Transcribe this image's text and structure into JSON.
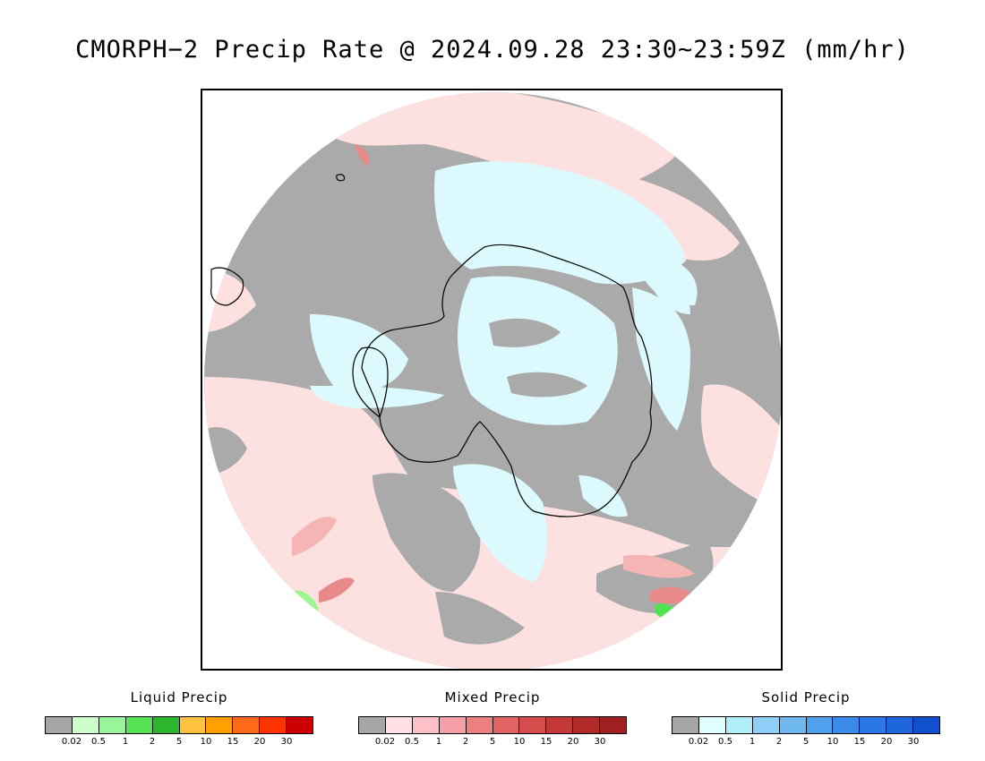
{
  "title": "CMORPH−2 Precip Rate @ 2024.09.28 23:30~23:59Z (mm/hr)",
  "map": {
    "projection": "south-polar-stereographic",
    "colors": {
      "no_data_gray": "#aaaaaa",
      "mixed_light": "#fde0e0",
      "mixed_medium": "#f5b5b5",
      "mixed_dark": "#e88a8a",
      "solid_light": "#dcfafe",
      "solid_medium": "#b0e8f4",
      "liquid_light": "#9cf58e",
      "liquid_medium": "#50e350",
      "coastline": "#000000"
    }
  },
  "legends": [
    {
      "name": "liquid",
      "title": "Liquid Precip",
      "colors": [
        "#a6a6a6",
        "#ccffcc",
        "#99f599",
        "#55e355",
        "#2db52d",
        "#ffc240",
        "#ffa000",
        "#ff6a1a",
        "#ff3300",
        "#cc0000"
      ],
      "ticks": [
        "0.02",
        "0.5",
        "1",
        "2",
        "5",
        "10",
        "15",
        "20",
        "30"
      ]
    },
    {
      "name": "mixed",
      "title": "Mixed Precip",
      "colors": [
        "#a6a6a6",
        "#ffe0e6",
        "#ffc0c8",
        "#f4a0a6",
        "#ec8080",
        "#e06464",
        "#d44c4c",
        "#c43838",
        "#b02a2a",
        "#a02020"
      ],
      "ticks": [
        "0.02",
        "0.5",
        "1",
        "2",
        "5",
        "10",
        "15",
        "20",
        "30"
      ]
    },
    {
      "name": "solid",
      "title": "Solid Precip",
      "colors": [
        "#a6a6a6",
        "#e0ffff",
        "#b0eff8",
        "#90d0f8",
        "#70b8f0",
        "#50a0ee",
        "#3a8ae8",
        "#2a78e6",
        "#1e66dc",
        "#1050cc"
      ],
      "ticks": [
        "0.02",
        "0.5",
        "1",
        "2",
        "5",
        "10",
        "15",
        "20",
        "30"
      ]
    }
  ]
}
